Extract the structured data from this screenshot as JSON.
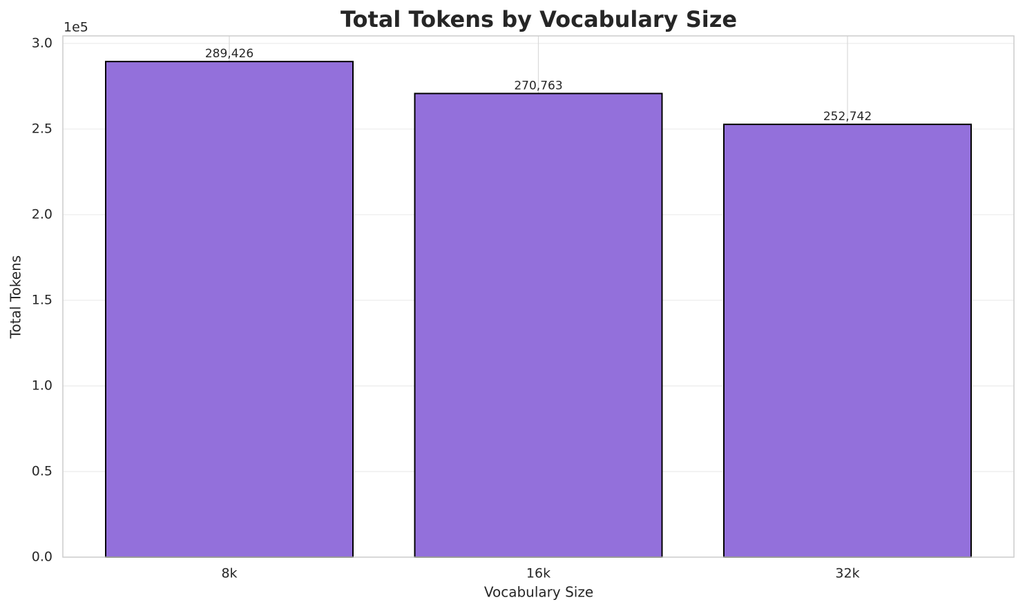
{
  "chart_data": {
    "type": "bar",
    "title": "Total Tokens by Vocabulary Size",
    "x_label": "Vocabulary Size",
    "y_label": "Total Tokens",
    "y_offset_text": "1e5",
    "categories": [
      "8k",
      "16k",
      "32k"
    ],
    "values": [
      289426,
      270763,
      252742
    ],
    "value_labels": [
      "289,426",
      "270,763",
      "252,742"
    ],
    "color": "#9370db",
    "edgecolor": "#000000",
    "ylim": [
      0,
      304400
    ],
    "yticks": [
      {
        "value": 0,
        "label": "0.0"
      },
      {
        "value": 50000,
        "label": "0.5"
      },
      {
        "value": 100000,
        "label": "1.0"
      },
      {
        "value": 150000,
        "label": "1.5"
      },
      {
        "value": 200000,
        "label": "2.0"
      },
      {
        "value": 250000,
        "label": "2.5"
      },
      {
        "value": 300000,
        "label": "3.0"
      }
    ],
    "grid": true
  }
}
